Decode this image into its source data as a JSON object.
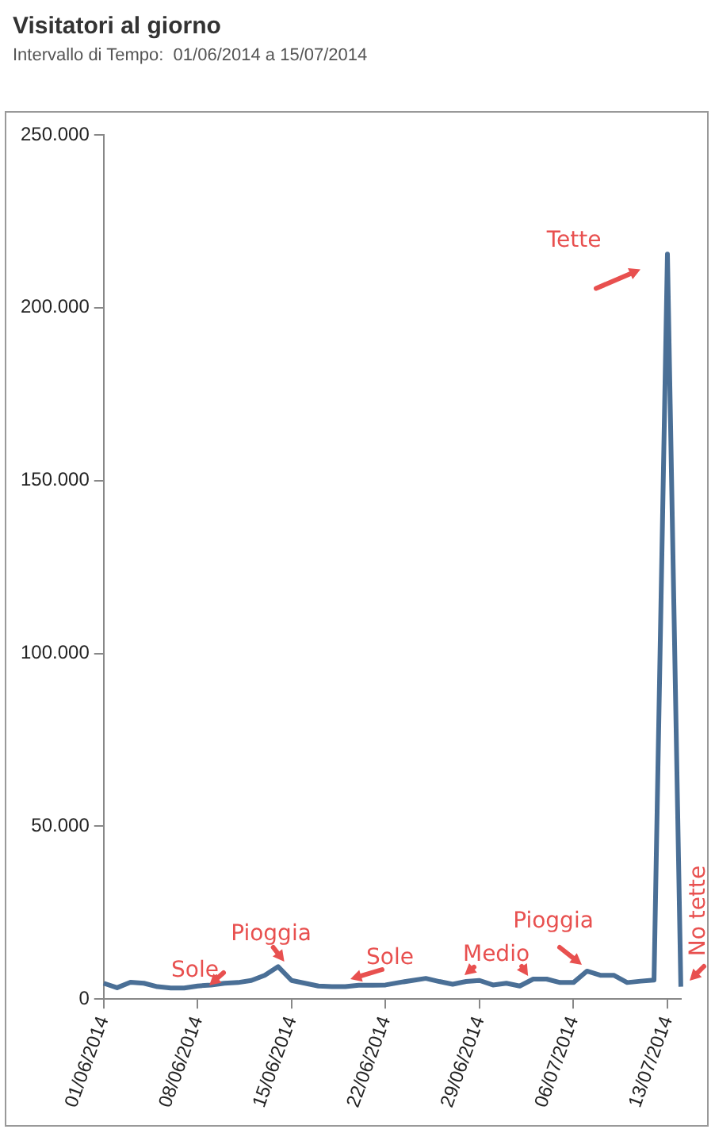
{
  "chart_data": {
    "type": "line",
    "title": "Visitatori al giorno",
    "subtitle": "Intervallo di Tempo:  01/06/2014 a 15/07/2014",
    "categories": [
      "01/06/2014",
      null,
      null,
      null,
      null,
      null,
      null,
      "08/06/2014",
      null,
      null,
      null,
      null,
      null,
      null,
      "15/06/2014",
      null,
      null,
      null,
      null,
      null,
      null,
      "22/06/2014",
      null,
      null,
      null,
      null,
      null,
      null,
      "29/06/2014",
      null,
      null,
      null,
      null,
      null,
      null,
      "06/07/2014",
      null,
      null,
      null,
      null,
      null,
      null,
      "13/07/2014",
      null
    ],
    "series": [
      {
        "color": "#4a6f96",
        "values": [
          4600,
          3300,
          4900,
          4600,
          3600,
          3200,
          3200,
          3800,
          4100,
          4600,
          4800,
          5400,
          6900,
          9400,
          5400,
          4600,
          3800,
          3600,
          3600,
          4000,
          4000,
          4100,
          4800,
          5400,
          6000,
          5100,
          4300,
          5100,
          5400,
          4100,
          4600,
          3800,
          5800,
          5800,
          4800,
          4800,
          8100,
          6900,
          6900,
          4800,
          5200,
          5500,
          215500,
          3600
        ]
      }
    ],
    "ylim": [
      0,
      250000
    ],
    "yticks": [
      {
        "value": 0,
        "label": "0"
      },
      {
        "value": 50000,
        "label": "50.000"
      },
      {
        "value": 100000,
        "label": "100.000"
      },
      {
        "value": 150000,
        "label": "150.000"
      },
      {
        "value": 200000,
        "label": "200.000"
      },
      {
        "value": 250000,
        "label": "250.000"
      }
    ],
    "grid": false,
    "legend": false,
    "marker": "none",
    "line_style": "solid",
    "annotations": [
      "Sole",
      "Pioggia",
      "Sole",
      "Medio",
      "Pioggia",
      "Tette",
      "No tette"
    ]
  }
}
